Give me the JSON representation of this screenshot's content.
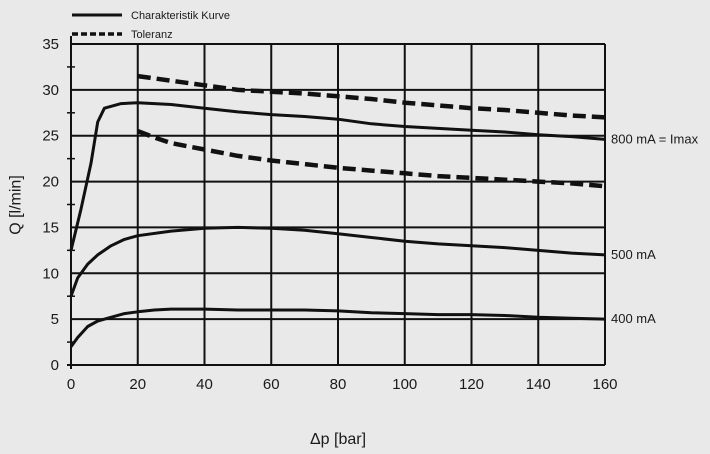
{
  "chart_data": {
    "type": "line",
    "xlabel": "Δp [bar]",
    "ylabel": "Q [l/min]",
    "xlim": [
      0,
      160
    ],
    "ylim": [
      0,
      35
    ],
    "x_ticks": [
      0,
      20,
      40,
      60,
      80,
      100,
      120,
      140,
      160
    ],
    "y_ticks": [
      0,
      5,
      10,
      15,
      20,
      25,
      30,
      35
    ],
    "grid": true,
    "legend": {
      "placement": "top-left",
      "entries": [
        {
          "label": "Charakteristik Kurve",
          "style": "solid"
        },
        {
          "label": "Toleranz",
          "style": "dashed"
        }
      ]
    },
    "series": [
      {
        "label": "800 mA = Imax",
        "style": "solid",
        "points": [
          [
            0,
            12.5
          ],
          [
            3,
            17
          ],
          [
            6,
            22
          ],
          [
            8,
            26.5
          ],
          [
            10,
            28
          ],
          [
            15,
            28.5
          ],
          [
            20,
            28.6
          ],
          [
            25,
            28.5
          ],
          [
            30,
            28.4
          ],
          [
            40,
            28
          ],
          [
            50,
            27.6
          ],
          [
            60,
            27.3
          ],
          [
            70,
            27.1
          ],
          [
            80,
            26.8
          ],
          [
            90,
            26.3
          ],
          [
            100,
            26
          ],
          [
            110,
            25.8
          ],
          [
            120,
            25.6
          ],
          [
            130,
            25.4
          ],
          [
            140,
            25.1
          ],
          [
            150,
            24.9
          ],
          [
            160,
            24.6
          ]
        ]
      },
      {
        "label": "500 mA",
        "style": "solid",
        "points": [
          [
            0,
            7.5
          ],
          [
            2,
            9.5
          ],
          [
            5,
            11
          ],
          [
            8,
            12
          ],
          [
            12,
            13
          ],
          [
            16,
            13.7
          ],
          [
            20,
            14.1
          ],
          [
            30,
            14.6
          ],
          [
            40,
            14.9
          ],
          [
            50,
            15
          ],
          [
            60,
            14.9
          ],
          [
            70,
            14.7
          ],
          [
            80,
            14.3
          ],
          [
            90,
            13.9
          ],
          [
            100,
            13.5
          ],
          [
            110,
            13.2
          ],
          [
            120,
            13
          ],
          [
            130,
            12.8
          ],
          [
            140,
            12.5
          ],
          [
            150,
            12.2
          ],
          [
            160,
            12
          ]
        ]
      },
      {
        "label": "400 mA",
        "style": "solid",
        "points": [
          [
            0,
            2
          ],
          [
            2,
            3
          ],
          [
            5,
            4.2
          ],
          [
            8,
            4.8
          ],
          [
            12,
            5.2
          ],
          [
            16,
            5.6
          ],
          [
            20,
            5.8
          ],
          [
            25,
            6
          ],
          [
            30,
            6.1
          ],
          [
            40,
            6.1
          ],
          [
            50,
            6
          ],
          [
            60,
            6
          ],
          [
            70,
            6
          ],
          [
            80,
            5.9
          ],
          [
            90,
            5.7
          ],
          [
            100,
            5.6
          ],
          [
            110,
            5.5
          ],
          [
            120,
            5.5
          ],
          [
            130,
            5.4
          ],
          [
            140,
            5.2
          ],
          [
            150,
            5.1
          ],
          [
            160,
            5
          ]
        ]
      },
      {
        "label": "",
        "style": "dashed",
        "points": [
          [
            20,
            31.5
          ],
          [
            30,
            31
          ],
          [
            40,
            30.5
          ],
          [
            50,
            30
          ],
          [
            60,
            29.8
          ],
          [
            70,
            29.6
          ],
          [
            80,
            29.3
          ],
          [
            90,
            29
          ],
          [
            100,
            28.6
          ],
          [
            110,
            28.3
          ],
          [
            120,
            28
          ],
          [
            130,
            27.8
          ],
          [
            140,
            27.5
          ],
          [
            150,
            27.2
          ],
          [
            160,
            27
          ]
        ]
      },
      {
        "label": "",
        "style": "dashed",
        "points": [
          [
            20,
            25.5
          ],
          [
            25,
            24.8
          ],
          [
            30,
            24.2
          ],
          [
            40,
            23.5
          ],
          [
            50,
            22.8
          ],
          [
            60,
            22.3
          ],
          [
            70,
            21.9
          ],
          [
            80,
            21.5
          ],
          [
            90,
            21.2
          ],
          [
            100,
            20.9
          ],
          [
            110,
            20.6
          ],
          [
            120,
            20.4
          ],
          [
            130,
            20.2
          ],
          [
            140,
            20
          ],
          [
            150,
            19.8
          ],
          [
            160,
            19.5
          ]
        ]
      }
    ]
  }
}
